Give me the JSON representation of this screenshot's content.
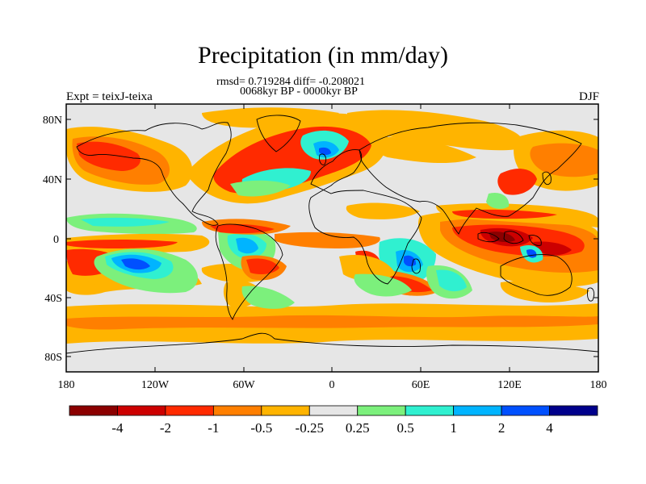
{
  "header": {
    "title": "Precipitation (in mm/day)",
    "stats": "rmsd= 0.719284 diff= -0.208021",
    "period": "0068kyr BP - 0000kyr BP",
    "experiment": "Expt = teixJ-teixa",
    "season": "DJF"
  },
  "map": {
    "lat_ticks": [
      "80N",
      "40N",
      "0",
      "40S",
      "80S"
    ],
    "lon_ticks": [
      "180",
      "120W",
      "60W",
      "0",
      "60E",
      "120E",
      "180"
    ]
  },
  "colorbar": {
    "colors": [
      "#8b0000",
      "#cc0000",
      "#ff2a00",
      "#ff7f00",
      "#ffb400",
      "#e6e6e6",
      "#7cf07c",
      "#30f0d0",
      "#00b4ff",
      "#0050ff",
      "#00008b"
    ],
    "labels": [
      "-4",
      "-2",
      "-1",
      "-0.5",
      "-0.25",
      "0.25",
      "0.5",
      "1",
      "2",
      "4"
    ]
  }
}
